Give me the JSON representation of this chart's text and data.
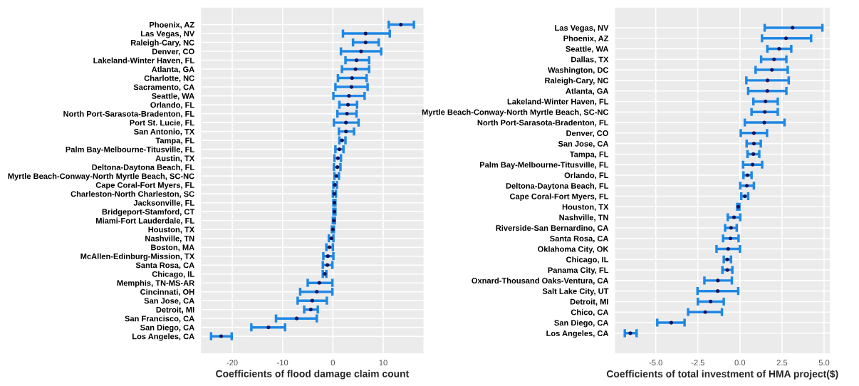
{
  "chart_data": [
    {
      "type": "scatter",
      "orientation": "horizontal",
      "xlabel": "Coefficients of flood damage claim count",
      "xlim": [
        -26.2,
        18.0
      ],
      "xticks": [
        -20,
        -10,
        0,
        10
      ],
      "grid": true,
      "marker": "circle",
      "categories": [
        "Phoenix, AZ",
        "Las Vegas, NV",
        "Raleigh-Cary, NC",
        "Denver, CO",
        "Lakeland-Winter Haven, FL",
        "Atlanta, GA",
        "Charlotte, NC",
        "Sacramento, CA",
        "Seattle, WA",
        "Orlando, FL",
        "North Port-Sarasota-Bradenton, FL",
        "Port St. Lucie, FL",
        "San Antonio, TX",
        "Tampa, FL",
        "Palm Bay-Melbourne-Titusville, FL",
        "Austin, TX",
        "Deltona-Daytona Beach, FL",
        "Myrtle Beach-Conway-North Myrtle Beach, SC-NC",
        "Cape Coral-Fort Myers, FL",
        "Charleston-North Charleston, SC",
        "Jacksonville, FL",
        "Bridgeport-Stamford, CT",
        "Miami-Fort Lauderdale, FL",
        "Houston, TX",
        "Nashville, TN",
        "Boston, MA",
        "McAllen-Edinburg-Mission, TX",
        "Santa Rosa, CA",
        "Chicago, IL",
        "Memphis, TN-MS-AR",
        "Cincinnati, OH",
        "San Jose, CA",
        "Detroit, MI",
        "San Francisco, CA",
        "San Diego, CA",
        "Los Angeles, CA"
      ],
      "series": [
        {
          "color": "#14145a",
          "values": [
            13.5,
            6.5,
            6.5,
            5.6,
            4.7,
            4.5,
            3.8,
            3.7,
            3.2,
            3.0,
            2.8,
            2.6,
            2.6,
            1.8,
            1.3,
            1.0,
            0.9,
            0.7,
            0.4,
            0.3,
            0.3,
            0.3,
            0.2,
            0.0,
            -0.3,
            -0.7,
            -1.0,
            -1.1,
            -1.6,
            -2.7,
            -3.2,
            -4.1,
            -4.4,
            -7.2,
            -12.8,
            -22.2
          ],
          "errors": [
            [
              11.1,
              16.1
            ],
            [
              2.0,
              11.3
            ],
            [
              4.0,
              9.1
            ],
            [
              1.6,
              9.6
            ],
            [
              2.5,
              7.2
            ],
            [
              1.8,
              7.2
            ],
            [
              1.0,
              6.7
            ],
            [
              0.5,
              6.9
            ],
            [
              0.1,
              6.3
            ],
            [
              1.3,
              4.8
            ],
            [
              0.9,
              4.7
            ],
            [
              0.2,
              5.1
            ],
            [
              1.2,
              4.2
            ],
            [
              1.3,
              2.5
            ],
            [
              0.5,
              2.1
            ],
            [
              0.3,
              1.6
            ],
            [
              0.2,
              1.5
            ],
            [
              0.3,
              1.2
            ],
            [
              0.1,
              0.8
            ],
            [
              0.0,
              0.6
            ],
            [
              0.1,
              0.5
            ],
            [
              0.1,
              0.5
            ],
            [
              0.0,
              0.4
            ],
            [
              -0.2,
              0.2
            ],
            [
              -0.8,
              0.1
            ],
            [
              -1.3,
              0.0
            ],
            [
              -1.9,
              0.1
            ],
            [
              -2.0,
              -0.1
            ],
            [
              -2.0,
              -1.3
            ],
            [
              -5.0,
              -0.1
            ],
            [
              -6.5,
              -0.1
            ],
            [
              -7.0,
              -1.2
            ],
            [
              -5.7,
              -3.0
            ],
            [
              -11.3,
              -3.2
            ],
            [
              -16.2,
              -9.5
            ],
            [
              -24.2,
              -20.1
            ]
          ]
        }
      ]
    },
    {
      "type": "scatter",
      "orientation": "horizontal",
      "xlabel": "Coefficients of total investment of HMA project($)",
      "xlim": [
        -7.42,
        5.34
      ],
      "xticks": [
        {
          "value": -5,
          "label": "-5.0"
        },
        {
          "value": -2.5,
          "label": "-2.5"
        },
        {
          "value": 0,
          "label": "0.0"
        },
        {
          "value": 2.5,
          "label": "2.5"
        },
        {
          "value": 5,
          "label": "5.0"
        }
      ],
      "grid": true,
      "marker": "circle",
      "categories": [
        "Las Vegas, NV",
        "Phoenix, AZ",
        "Seattle, WA",
        "Dallas, TX",
        "Washington, DC",
        "Raleigh-Cary, NC",
        "Atlanta, GA",
        "Lakeland-Winter Haven, FL",
        "Myrtle Beach-Conway-North Myrtle Beach, SC-NC",
        "North Port-Sarasota-Bradenton, FL",
        "Denver, CO",
        "San Jose, CA",
        "Tampa, FL",
        "Palm Bay-Melbourne-Titusville, FL",
        "Orlando, FL",
        "Deltona-Daytona Beach, FL",
        "Cape Coral-Fort Myers, FL",
        "Houston, TX",
        "Nashville, TN",
        "Riverside-San Bernardino, CA",
        "Santa Rosa, CA",
        "Oklahoma City, OK",
        "Chicago, IL",
        "Panama City, FL",
        "Oxnard-Thousand Oaks-Ventura, CA",
        "Salt Lake City, UT",
        "Detroit, MI",
        "Chico, CA",
        "San Diego, CA",
        "Los Angeles, CA"
      ],
      "series": [
        {
          "color": "#14145a",
          "values": [
            3.13,
            2.74,
            2.33,
            2.03,
            1.9,
            1.64,
            1.63,
            1.52,
            1.48,
            1.45,
            0.83,
            0.83,
            0.8,
            0.75,
            0.45,
            0.41,
            0.29,
            -0.1,
            -0.35,
            -0.53,
            -0.56,
            -0.7,
            -0.75,
            -0.75,
            -1.31,
            -1.32,
            -1.74,
            -2.06,
            -4.08,
            -6.51
          ],
          "errors": [
            [
              1.47,
              4.9
            ],
            [
              1.31,
              4.23
            ],
            [
              1.63,
              3.05
            ],
            [
              1.26,
              2.76
            ],
            [
              0.93,
              2.84
            ],
            [
              0.38,
              2.9
            ],
            [
              0.49,
              2.76
            ],
            [
              0.8,
              2.25
            ],
            [
              0.69,
              2.25
            ],
            [
              0.29,
              2.65
            ],
            [
              0.05,
              1.61
            ],
            [
              0.4,
              1.24
            ],
            [
              0.45,
              1.15
            ],
            [
              0.19,
              1.32
            ],
            [
              0.21,
              0.69
            ],
            [
              0.02,
              0.83
            ],
            [
              0.08,
              0.49
            ],
            [
              -0.16,
              -0.03
            ],
            [
              -0.72,
              0.02
            ],
            [
              -0.88,
              -0.19
            ],
            [
              -1.0,
              -0.08
            ],
            [
              -1.39,
              0.0
            ],
            [
              -0.96,
              -0.53
            ],
            [
              -1.04,
              -0.45
            ],
            [
              -2.11,
              -0.48
            ],
            [
              -2.52,
              -0.1
            ],
            [
              -2.5,
              -0.96
            ],
            [
              -3.08,
              -1.07
            ],
            [
              -4.91,
              -3.29
            ],
            [
              -6.84,
              -6.14
            ]
          ]
        }
      ]
    }
  ]
}
